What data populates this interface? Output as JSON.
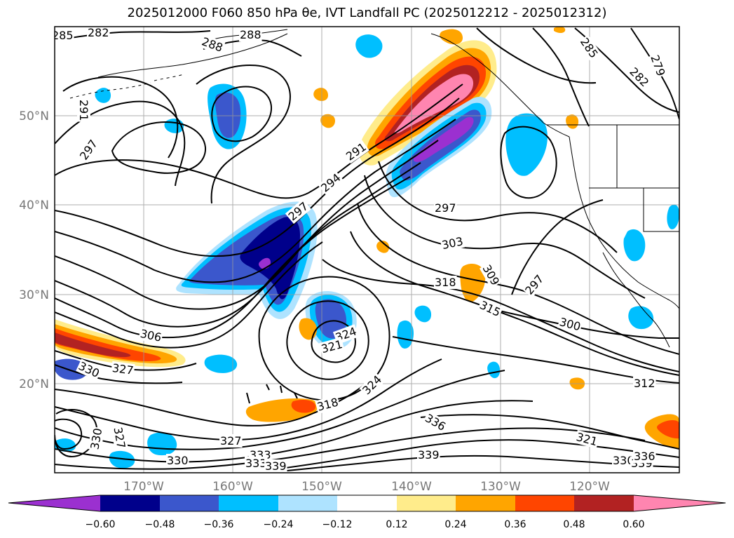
{
  "title": "2025012000 F060 850 hPa θe, IVT Landfall PC (2025012212 - 2025012312)",
  "lat_labels": [
    "50°N",
    "40°N",
    "30°N",
    "20°N"
  ],
  "lon_labels": [
    "170°W",
    "160°W",
    "150°W",
    "140°W",
    "130°W",
    "120°W"
  ],
  "contour_labels": [
    "285",
    "282",
    "288",
    "288",
    "285",
    "282",
    "279",
    "291",
    "297",
    "291",
    "294",
    "297",
    "297",
    "303",
    "309",
    "318",
    "297",
    "315",
    "300",
    "306",
    "327",
    "330",
    "324",
    "321",
    "324",
    "318",
    "312",
    "330",
    "327",
    "327",
    "333",
    "333",
    "339",
    "339",
    "336",
    "321",
    "330",
    "330",
    "339",
    "336"
  ],
  "colorbar": {
    "ticks": [
      "−0.60",
      "−0.48",
      "−0.36",
      "−0.24",
      "−0.12",
      "0.12",
      "0.24",
      "0.36",
      "0.48",
      "0.60"
    ],
    "colors": [
      "#9b30d0",
      "#00008b",
      "#3b57cc",
      "#00bfff",
      "#aee3ff",
      "#ffffff",
      "#ffec8b",
      "#ffa500",
      "#ff4500",
      "#b22222",
      "#ff85b0"
    ]
  }
}
